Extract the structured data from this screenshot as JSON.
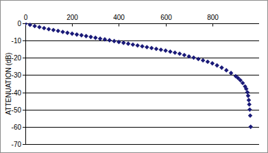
{
  "chart_data": {
    "type": "scatter",
    "y_label": "ATTENUATION (dB)",
    "x": [
      0,
      20,
      40,
      60,
      80,
      100,
      120,
      140,
      160,
      180,
      200,
      220,
      240,
      260,
      280,
      300,
      320,
      340,
      360,
      380,
      400,
      420,
      440,
      460,
      480,
      500,
      520,
      540,
      560,
      580,
      600,
      620,
      640,
      660,
      680,
      700,
      720,
      740,
      760,
      780,
      800,
      820,
      840,
      860,
      880,
      900,
      910,
      920,
      930,
      940,
      945,
      950,
      953,
      956,
      958,
      960,
      962,
      964
    ],
    "values": [
      -0.2,
      -0.9,
      -1.6,
      -2.2,
      -2.8,
      -3.4,
      -3.9,
      -4.4,
      -5.0,
      -5.5,
      -6.0,
      -6.5,
      -6.9,
      -7.4,
      -7.9,
      -8.4,
      -8.9,
      -9.3,
      -9.8,
      -10.3,
      -10.8,
      -11.3,
      -11.8,
      -12.3,
      -12.8,
      -13.3,
      -13.8,
      -14.3,
      -14.8,
      -15.3,
      -15.8,
      -16.4,
      -17.0,
      -17.6,
      -18.4,
      -19.2,
      -19.9,
      -20.7,
      -21.5,
      -22.3,
      -23.2,
      -24.4,
      -25.7,
      -27.2,
      -28.8,
      -30.6,
      -31.7,
      -33.0,
      -34.6,
      -36.6,
      -38.0,
      -40.0,
      -42.0,
      -44.5,
      -47.0,
      -50.0,
      -53.5,
      -60.0
    ],
    "color": "#1a1a78",
    "marker": "diamond",
    "xlim": [
      0,
      1000
    ],
    "xticks": [
      0,
      200,
      400,
      600,
      800
    ],
    "ylim": [
      -70,
      0
    ],
    "yticks": [
      0,
      -10,
      -20,
      -30,
      -40,
      -50,
      -60,
      -70
    ],
    "grid": true
  }
}
